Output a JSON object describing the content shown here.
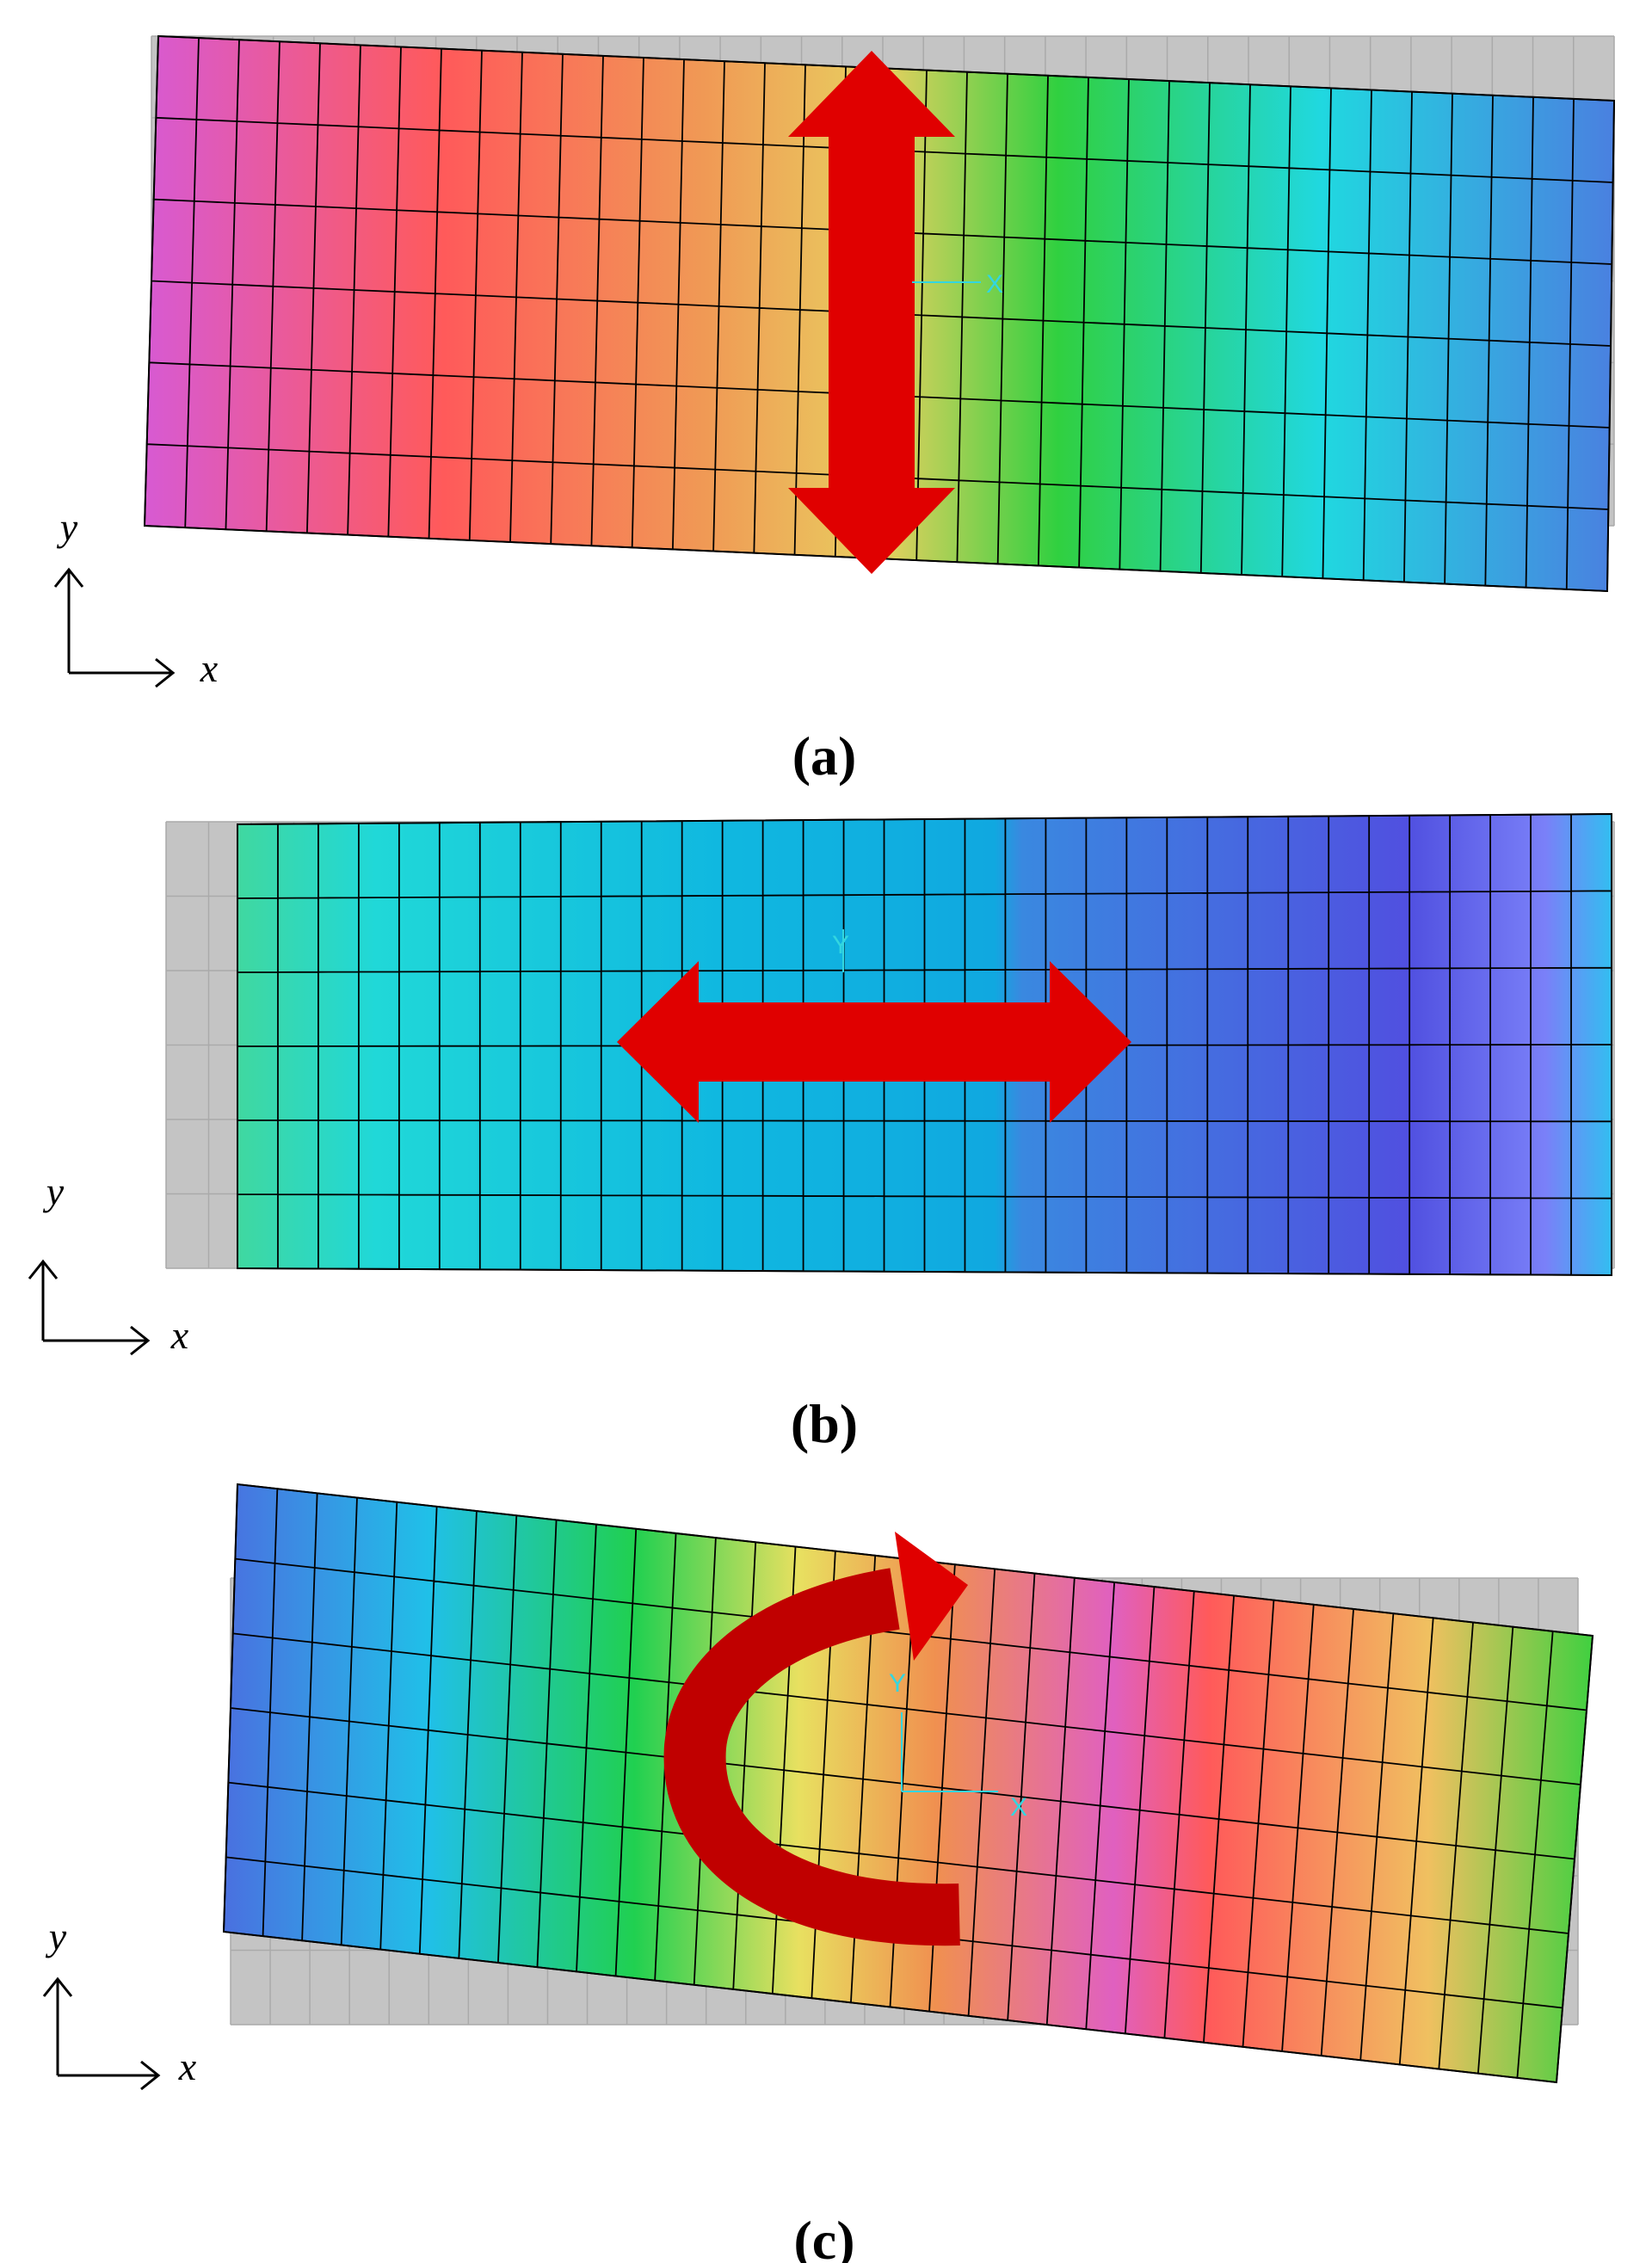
{
  "panels": [
    {
      "caption": "(a)",
      "axis_x": "x",
      "axis_y": "y",
      "markers": [
        "X"
      ]
    },
    {
      "caption": "(b)",
      "axis_x": "x",
      "axis_y": "y",
      "markers": [
        "Y"
      ]
    },
    {
      "caption": "(c)",
      "axis_x": "x",
      "axis_y": "y",
      "markers": [
        "Y",
        "X"
      ]
    }
  ]
}
